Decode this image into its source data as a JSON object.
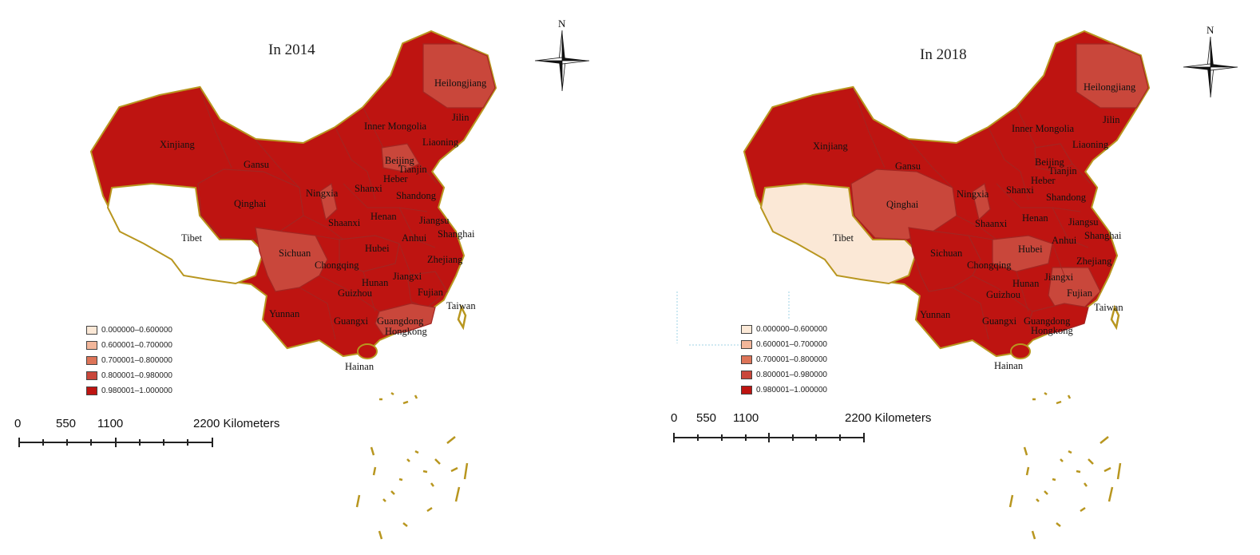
{
  "legend_classes": [
    {
      "label": "0.000000–0.600000",
      "color": "#fbe8d6"
    },
    {
      "label": "0.600001–0.700000",
      "color": "#f2b69a"
    },
    {
      "label": "0.700001–0.800000",
      "color": "#dd7458"
    },
    {
      "label": "0.800001–0.980000",
      "color": "#c9473b"
    },
    {
      "label": "0.980001–1.000000",
      "color": "#be1411"
    }
  ],
  "scale_bar": {
    "ticks": [
      "0",
      "550",
      "1100",
      "2200 Kilometers"
    ]
  },
  "compass_label": "N",
  "maps": [
    {
      "title": "In 2014",
      "fills": {
        "main": "#be1411",
        "tibet": "#ffffff",
        "sichuan": "#c9473b",
        "heilongjiang": "#c9473b",
        "beijing": "#c9473b",
        "ningxia": "#c9473b",
        "guangdong": "#c9473b",
        "qinghai": "#be1411",
        "hubei": "#be1411",
        "fujian": "#be1411"
      },
      "labels": [
        "Xinjiang",
        "Gansu",
        "Qinghai",
        "Tibet",
        "Inner Mongolia",
        "Heilongjiang",
        "Jilin",
        "Liaoning",
        "Beijing",
        "Tianjin",
        "Heber",
        "Shanxi",
        "Ningxia",
        "Shandong",
        "Shaanxi",
        "Henan",
        "Jiangsu",
        "Shanghai",
        "Anhui",
        "Sichuan",
        "Chongqing",
        "Hubei",
        "Zhejiang",
        "Hunan",
        "Jiangxi",
        "Fujian",
        "Guizhou",
        "Yunnan",
        "Guangxi",
        "Guangdong",
        "Hongkong",
        "Taiwan",
        "Hainan"
      ]
    },
    {
      "title": "In 2018",
      "fills": {
        "main": "#be1411",
        "tibet": "#fbe8d6",
        "sichuan": "#be1411",
        "heilongjiang": "#c9473b",
        "beijing": "#be1411",
        "ningxia": "#c9473b",
        "guangdong": "#be1411",
        "qinghai": "#c9473b",
        "hubei": "#c9473b",
        "fujian": "#c9473b"
      },
      "labels": [
        "Xinjiang",
        "Gansu",
        "Qinghai",
        "Tibet",
        "Inner Mongolia",
        "Heilongjiang",
        "Jilin",
        "Liaoning",
        "Beijing",
        "Tianjin",
        "Heber",
        "Shanxi",
        "Ningxia",
        "Shandong",
        "Shaanxi",
        "Henan",
        "Jiangsu",
        "Shanghai",
        "Anhui",
        "Sichuan",
        "Chongqing",
        "Hubei",
        "Zhejiang",
        "Hunan",
        "Jiangxi",
        "Fujian",
        "Guizhou",
        "Yunnan",
        "Guangxi",
        "Guangdong",
        "Hongkong",
        "Taiwan",
        "Hainan"
      ]
    }
  ]
}
